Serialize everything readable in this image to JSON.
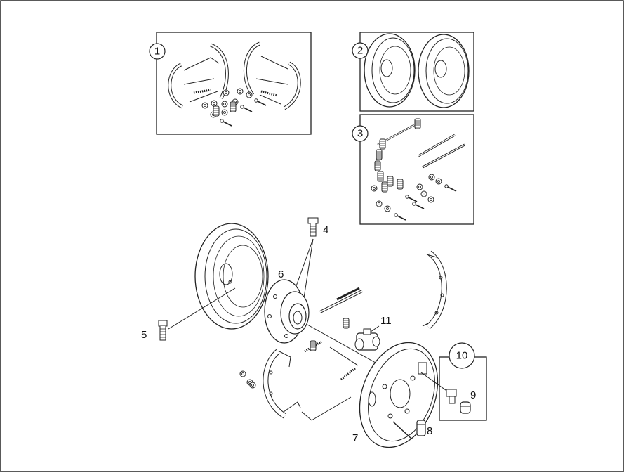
{
  "diagram": {
    "kit_labels": [
      "1",
      "2",
      "3",
      "10"
    ],
    "part_labels": [
      "4",
      "5",
      "6",
      "7",
      "8",
      "9",
      "11"
    ]
  }
}
